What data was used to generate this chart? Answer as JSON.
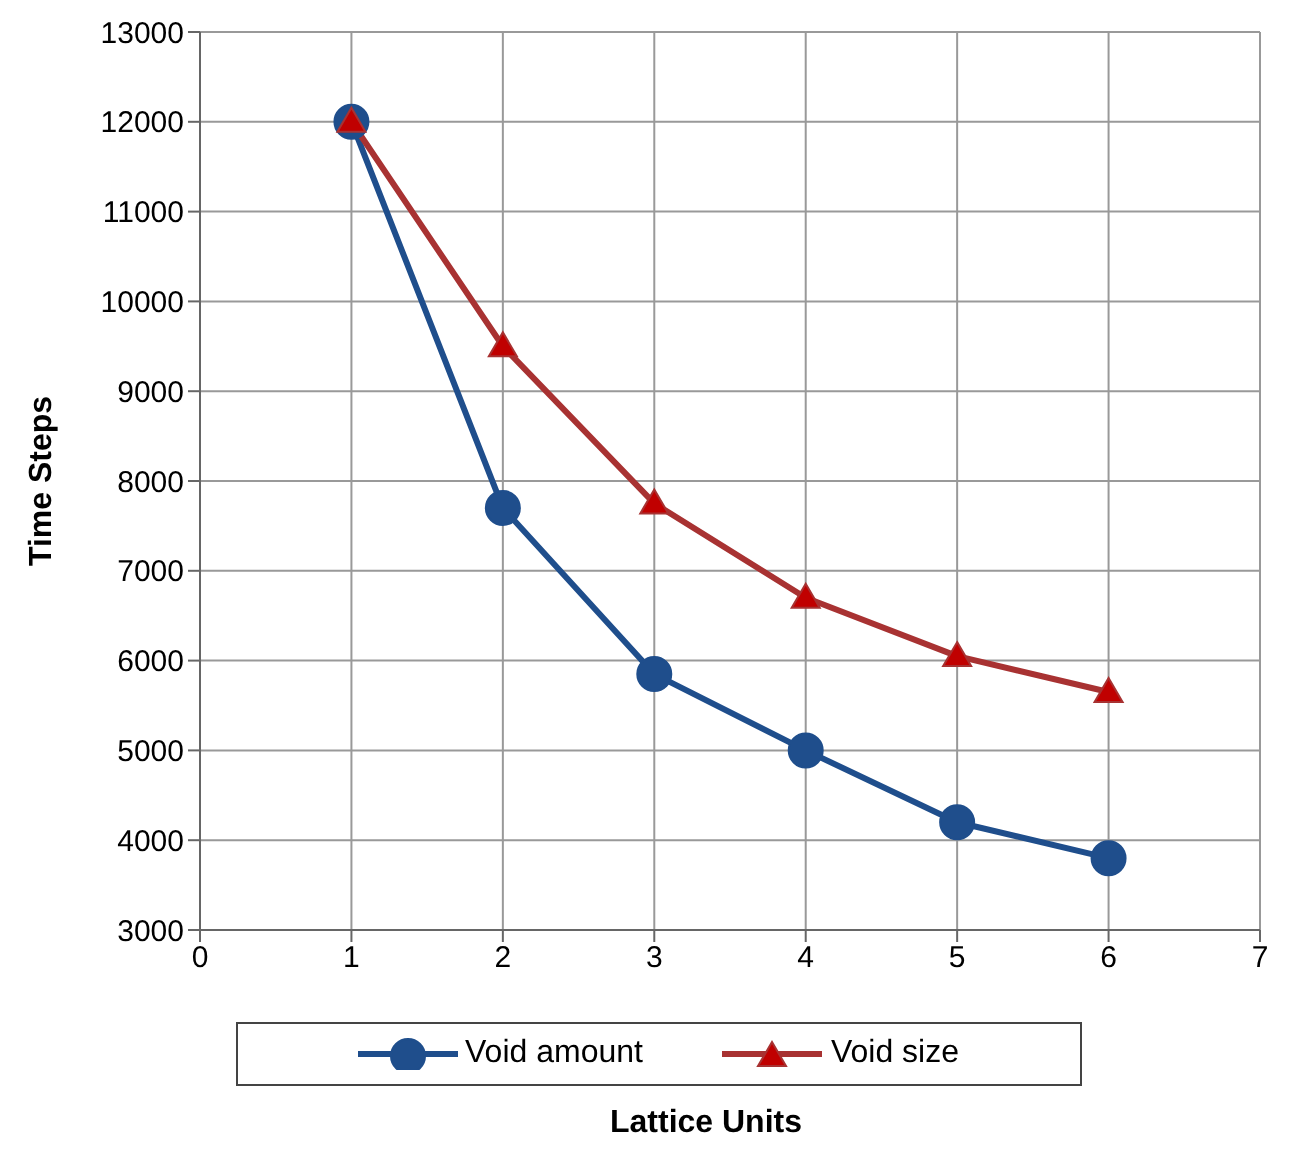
{
  "chart_data": {
    "type": "line",
    "xlabel": "Lattice Units",
    "ylabel": "Time Steps",
    "x": [
      1,
      2,
      3,
      4,
      5,
      6
    ],
    "xlim": [
      0,
      7
    ],
    "xticks": [
      0,
      1,
      2,
      3,
      4,
      5,
      6,
      7
    ],
    "ylim": [
      3000,
      13000
    ],
    "yticks": [
      3000,
      4000,
      5000,
      6000,
      7000,
      8000,
      9000,
      10000,
      11000,
      12000,
      13000
    ],
    "grid": true,
    "legend": "bottom",
    "line_style": "solid",
    "series": [
      {
        "name": "Void amount",
        "color": "#1f4e8c",
        "marker": "circle",
        "values": [
          12000,
          7700,
          5850,
          5000,
          4200,
          3800
        ]
      },
      {
        "name": "Void size",
        "color": "#a83232",
        "marker": "triangle",
        "values": [
          12000,
          9500,
          7750,
          6700,
          6050,
          5650
        ]
      }
    ]
  }
}
